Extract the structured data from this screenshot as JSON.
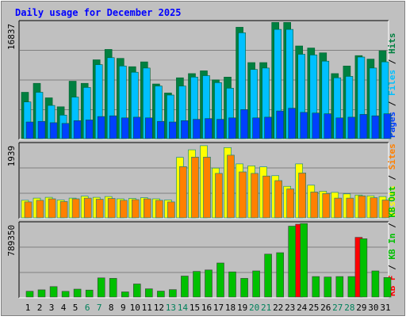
{
  "chart_data": [
    {
      "type": "bar",
      "title": "Daily usage for December 2025",
      "ylabel_parts": [
        "Pages",
        "Files",
        "Hits"
      ],
      "ylabel_separator": " / ",
      "ymax_label": "16837",
      "ylim": [
        0,
        16837
      ],
      "categories": [
        "1",
        "2",
        "3",
        "4",
        "5",
        "6",
        "7",
        "8",
        "9",
        "10",
        "11",
        "12",
        "13",
        "14",
        "15",
        "16",
        "17",
        "18",
        "19",
        "20",
        "21",
        "22",
        "23",
        "24",
        "25",
        "26",
        "27",
        "28",
        "29",
        "30",
        "31"
      ],
      "weekend_days": [
        "6",
        "7",
        "13",
        "14",
        "20",
        "21",
        "27",
        "28"
      ],
      "series": [
        {
          "name": "Hits",
          "color": "#008040",
          "values": [
            6700,
            8000,
            5900,
            4600,
            8300,
            8000,
            11400,
            12900,
            11600,
            10400,
            11100,
            7900,
            6600,
            8800,
            9400,
            9800,
            8500,
            8900,
            16100,
            11000,
            11000,
            16800,
            16800,
            13400,
            13100,
            12400,
            9400,
            10500,
            12000,
            11500,
            12700
          ]
        },
        {
          "name": "Files",
          "color": "#00c0ff",
          "values": [
            5300,
            6700,
            4800,
            3400,
            6000,
            7400,
            10700,
            11700,
            10500,
            9600,
            10200,
            7600,
            6300,
            7600,
            8900,
            9100,
            8100,
            7300,
            15300,
            10000,
            10200,
            15800,
            15800,
            12200,
            12100,
            11200,
            8800,
            9000,
            11800,
            10200,
            11100
          ]
        },
        {
          "name": "Pages",
          "color": "#0040ff",
          "values": [
            2400,
            2500,
            2300,
            2200,
            2600,
            2700,
            3200,
            3300,
            3000,
            3100,
            3000,
            2500,
            2400,
            2600,
            2800,
            2900,
            2800,
            3000,
            4200,
            3000,
            3100,
            4000,
            4400,
            3800,
            3700,
            3600,
            3000,
            3100,
            3500,
            3300,
            3600
          ]
        }
      ]
    },
    {
      "type": "bar",
      "ylabel_parts": [
        "Visits",
        "Sites"
      ],
      "ylabel_separator": " / ",
      "ymax_label": "1939",
      "ylim": [
        0,
        1939
      ],
      "categories": [
        "1",
        "2",
        "3",
        "4",
        "5",
        "6",
        "7",
        "8",
        "9",
        "10",
        "11",
        "12",
        "13",
        "14",
        "15",
        "16",
        "17",
        "18",
        "19",
        "20",
        "21",
        "22",
        "23",
        "24",
        "25",
        "26",
        "27",
        "28",
        "29",
        "30",
        "31"
      ],
      "series": [
        {
          "name": "Visits",
          "color": "#ffff00",
          "values": [
            460,
            520,
            540,
            470,
            520,
            570,
            540,
            560,
            500,
            510,
            530,
            500,
            470,
            1590,
            1790,
            1900,
            1310,
            1850,
            1420,
            1370,
            1340,
            1110,
            830,
            1420,
            860,
            700,
            670,
            630,
            600,
            580,
            560
          ]
        },
        {
          "name": "Sites",
          "color": "#ff8000",
          "values": [
            420,
            460,
            500,
            430,
            500,
            520,
            490,
            510,
            460,
            480,
            500,
            460,
            420,
            1350,
            1600,
            1600,
            1170,
            1650,
            1210,
            1170,
            1100,
            980,
            760,
            1180,
            680,
            640,
            520,
            520,
            580,
            530,
            470
          ]
        }
      ]
    },
    {
      "type": "bar",
      "ylabel_parts": [
        "KB F",
        "KB In",
        "KB Out"
      ],
      "ylabel_separator": " / ",
      "ymax_label": "789350",
      "ylim": [
        0,
        789350
      ],
      "categories": [
        "1",
        "2",
        "3",
        "4",
        "5",
        "6",
        "7",
        "8",
        "9",
        "10",
        "11",
        "12",
        "13",
        "14",
        "15",
        "16",
        "17",
        "18",
        "19",
        "20",
        "21",
        "22",
        "23",
        "24",
        "25",
        "26",
        "27",
        "28",
        "29",
        "30",
        "31"
      ],
      "series": [
        {
          "name": "KB F",
          "color": "#ff0000",
          "values": [
            0,
            0,
            0,
            0,
            0,
            0,
            0,
            0,
            0,
            0,
            0,
            0,
            0,
            0,
            0,
            0,
            0,
            0,
            0,
            0,
            0,
            0,
            0,
            780000,
            0,
            0,
            0,
            0,
            640000,
            0,
            0
          ]
        },
        {
          "name": "KB In",
          "color": "#00c000",
          "values": [
            0,
            0,
            0,
            0,
            0,
            0,
            0,
            0,
            0,
            0,
            0,
            0,
            0,
            0,
            0,
            0,
            0,
            0,
            0,
            0,
            0,
            0,
            0,
            0,
            0,
            0,
            0,
            0,
            0,
            0,
            0
          ]
        },
        {
          "name": "KB Out",
          "color": "#00c000",
          "values": [
            62000,
            77000,
            112000,
            61000,
            85000,
            75000,
            205000,
            200000,
            55000,
            140000,
            88000,
            64000,
            80000,
            225000,
            275000,
            290000,
            365000,
            270000,
            200000,
            280000,
            460000,
            475000,
            760000,
            788000,
            220000,
            215000,
            220000,
            220000,
            625000,
            280000,
            210000
          ]
        }
      ]
    }
  ]
}
